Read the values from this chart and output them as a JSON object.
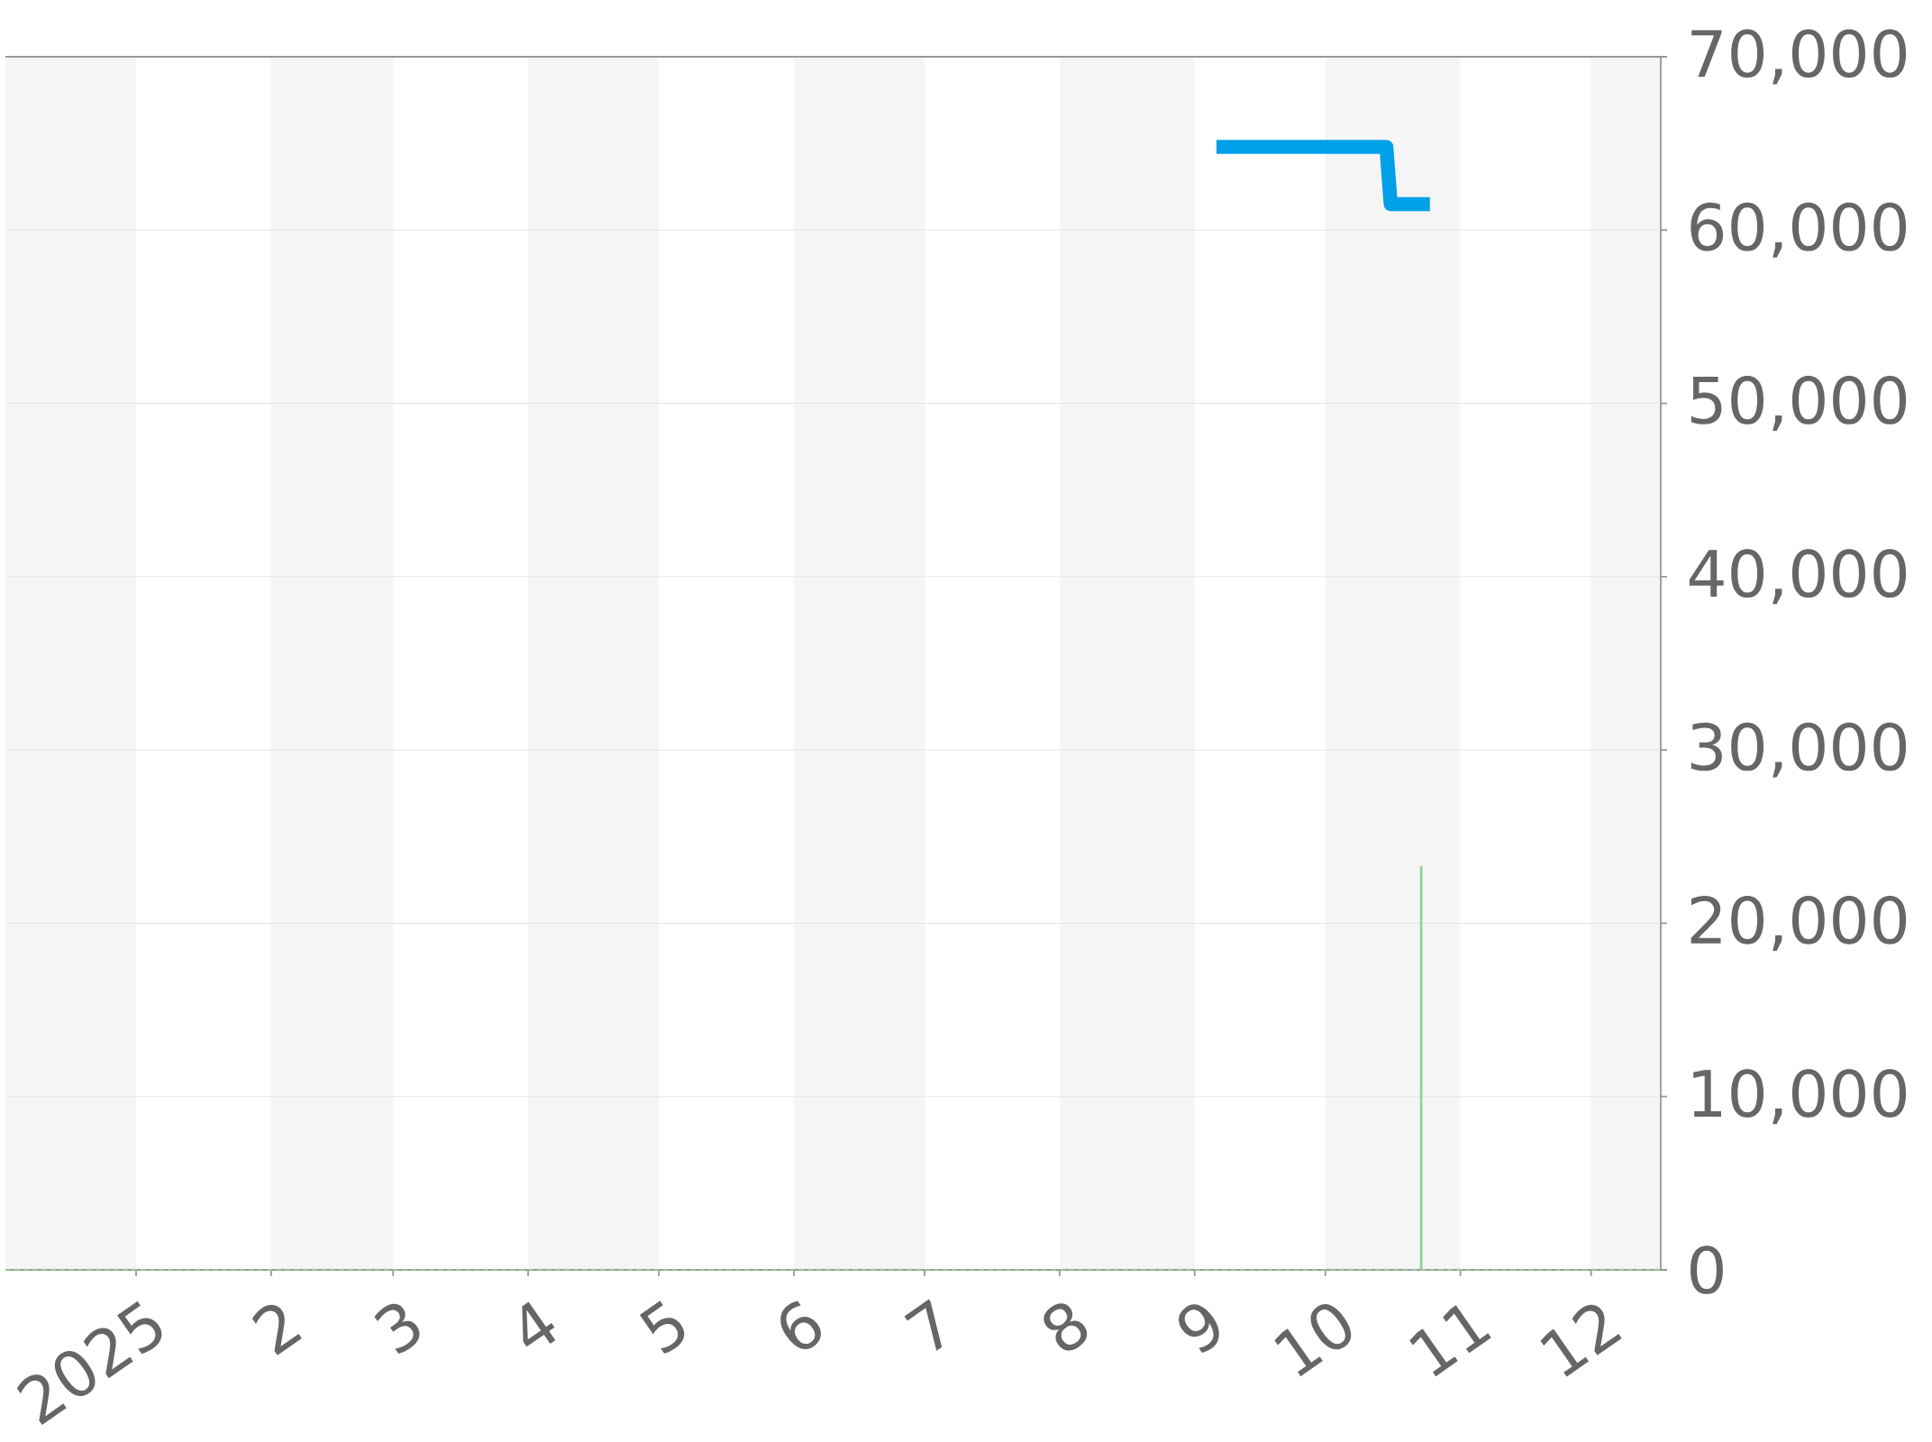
{
  "chart_data": {
    "type": "line",
    "series": [
      {
        "color": "#00a0e9",
        "x": [
          "2025-09-06",
          "2025-10-15",
          "2025-10-16",
          "2025-10-25"
        ],
        "values": [
          64800,
          64800,
          61500,
          61500
        ]
      },
      {
        "type": "bar",
        "color": "#8ed593",
        "x": [
          "2025-10-23"
        ],
        "values": [
          23300
        ]
      }
    ],
    "xlim": [
      "2024-12-02",
      "2025-12-17"
    ],
    "xticks": [
      {
        "value": "2025-01-01",
        "label": "2025"
      },
      {
        "value": "2025-02-01",
        "label": "2"
      },
      {
        "value": "2025-03-01",
        "label": "3"
      },
      {
        "value": "2025-04-01",
        "label": "4"
      },
      {
        "value": "2025-05-01",
        "label": "5"
      },
      {
        "value": "2025-06-01",
        "label": "6"
      },
      {
        "value": "2025-07-01",
        "label": "7"
      },
      {
        "value": "2025-08-01",
        "label": "8"
      },
      {
        "value": "2025-09-01",
        "label": "9"
      },
      {
        "value": "2025-10-01",
        "label": "10"
      },
      {
        "value": "2025-11-01",
        "label": "11"
      },
      {
        "value": "2025-12-01",
        "label": "12"
      }
    ],
    "ylim": [
      0,
      70000
    ],
    "yticks": [
      0,
      {
        "value": 10000,
        "label": "10,000"
      },
      {
        "value": 20000,
        "label": "20,000"
      },
      {
        "value": 30000,
        "label": "30,000"
      },
      {
        "value": 40000,
        "label": "40,000"
      },
      {
        "value": 50000,
        "label": "50,000"
      },
      {
        "value": 60000,
        "label": "60,000"
      },
      {
        "value": 70000,
        "label": "70,000"
      }
    ],
    "grid": "y",
    "bands": [
      {
        "axis": "x",
        "from": "2024-12-02",
        "to": "2025-01-01",
        "color": "#f5f5f5"
      },
      {
        "axis": "x",
        "from": "2025-02-01",
        "to": "2025-03-01",
        "color": "#f5f5f5"
      },
      {
        "axis": "x",
        "from": "2025-04-01",
        "to": "2025-05-01",
        "color": "#f5f5f5"
      },
      {
        "axis": "x",
        "from": "2025-06-01",
        "to": "2025-07-01",
        "color": "#f5f5f5"
      },
      {
        "axis": "x",
        "from": "2025-08-01",
        "to": "2025-09-01",
        "color": "#f5f5f5"
      },
      {
        "axis": "x",
        "from": "2025-10-01",
        "to": "2025-11-01",
        "color": "#f5f5f5"
      },
      {
        "axis": "x",
        "from": "2025-12-01",
        "to": "2025-12-17",
        "color": "#f5f5f5"
      }
    ],
    "ref_lines": [
      {
        "axis": "y",
        "value": 0,
        "color": "#8ed593",
        "line_style": "dashed"
      }
    ]
  }
}
